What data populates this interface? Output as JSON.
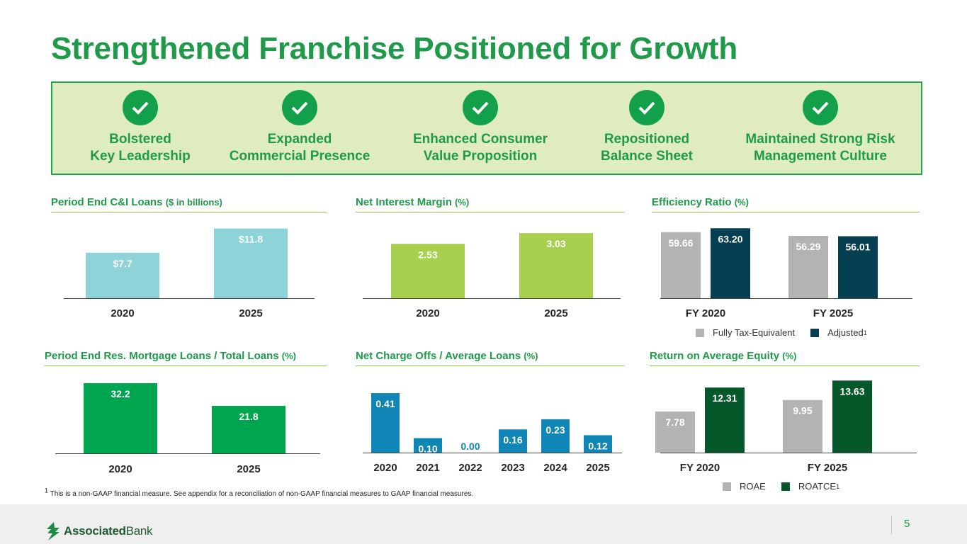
{
  "title": "Strengthened Franchise Positioned for Growth",
  "pillars": [
    {
      "line1": "Bolstered",
      "line2": "Key Leadership",
      "icon": "check-icon"
    },
    {
      "line1": "Expanded",
      "line2": "Commercial Presence",
      "icon": "check-icon"
    },
    {
      "line1": "Enhanced Consumer",
      "line2": "Value Proposition",
      "icon": "check-icon"
    },
    {
      "line1": "Repositioned",
      "line2": "Balance Sheet",
      "icon": "check-icon"
    },
    {
      "line1": "Maintained Strong Risk",
      "line2": "Management Culture",
      "icon": "check-icon"
    }
  ],
  "chart_data": [
    {
      "type": "bar",
      "title": "Period End C&I Loans",
      "unit": "($ in billions)",
      "categories": [
        "2020",
        "2025"
      ],
      "series": [
        {
          "name": "C&I Loans",
          "values": [
            7.7,
            11.8
          ],
          "labels": [
            "$7.7",
            "$11.8"
          ],
          "color": "#8dd3d8",
          "label_color": "#ffffff"
        }
      ],
      "ylim": [
        0,
        12
      ]
    },
    {
      "type": "bar",
      "title": "Net Interest Margin",
      "unit": "(%)",
      "categories": [
        "2020",
        "2025"
      ],
      "series": [
        {
          "name": "NIM",
          "values": [
            2.53,
            3.03
          ],
          "labels": [
            "2.53",
            "3.03"
          ],
          "color": "#a8cf4d",
          "label_color": "#ffffff"
        }
      ],
      "ylim": [
        0,
        3.1
      ]
    },
    {
      "type": "bar",
      "title": "Efficiency Ratio",
      "unit": "(%)",
      "categories": [
        "FY 2020",
        "FY 2025"
      ],
      "series": [
        {
          "name": "Fully Tax-Equivalent",
          "values": [
            59.66,
            56.29
          ],
          "labels": [
            "59.66",
            "56.29"
          ],
          "color": "#b3b3b3",
          "label_color": "#ffffff"
        },
        {
          "name": "Adjusted",
          "values": [
            63.2,
            56.01
          ],
          "labels": [
            "63.20",
            "56.01"
          ],
          "color": "#063f52",
          "label_color": "#ffffff"
        }
      ],
      "ylim": [
        0,
        64
      ],
      "legend": [
        "Fully Tax-Equivalent",
        "Adjusted"
      ],
      "legend_marker": "1"
    },
    {
      "type": "bar",
      "title": "Period End Res. Mortgage Loans / Total Loans",
      "unit": "(%)",
      "categories": [
        "2020",
        "2025"
      ],
      "series": [
        {
          "name": "Res. Mortgage / Total Loans",
          "values": [
            32.2,
            21.8
          ],
          "labels": [
            "32.2",
            "21.8"
          ],
          "color": "#00a64f",
          "label_color": "#ffffff"
        }
      ],
      "ylim": [
        0,
        32.5
      ]
    },
    {
      "type": "bar",
      "title": "Net Charge Offs / Average Loans",
      "unit": "(%)",
      "categories": [
        "2020",
        "2021",
        "2022",
        "2023",
        "2024",
        "2025"
      ],
      "series": [
        {
          "name": "NCO / Avg Loans",
          "values": [
            0.41,
            0.1,
            0.0,
            0.16,
            0.23,
            0.12
          ],
          "labels": [
            "0.41",
            "0.10",
            "0.00",
            "0.16",
            "0.23",
            "0.12"
          ],
          "color": "#0f86b6",
          "label_color": "#ffffff",
          "zero_label_color": "#0f86b6"
        }
      ],
      "ylim": [
        0,
        0.42
      ]
    },
    {
      "type": "bar",
      "title": "Return on Average Equity",
      "unit": "(%)",
      "categories": [
        "FY 2020",
        "FY 2025"
      ],
      "series": [
        {
          "name": "ROAE",
          "values": [
            7.78,
            9.95
          ],
          "labels": [
            "7.78",
            "9.95"
          ],
          "color": "#b3b3b3",
          "label_color": "#ffffff"
        },
        {
          "name": "ROATCE",
          "values": [
            12.31,
            13.63
          ],
          "labels": [
            "12.31",
            "13.63"
          ],
          "color": "#05582a",
          "label_color": "#ffffff"
        }
      ],
      "ylim": [
        0,
        13.8
      ],
      "legend": [
        "ROAE",
        "ROATCE"
      ],
      "legend_marker": "1"
    }
  ],
  "footnote": {
    "marker": "1",
    "text": "This is a non-GAAP financial measure. See appendix for a reconciliation of non-GAAP financial measures to GAAP financial measures."
  },
  "footer": {
    "logo_bold": "Associated",
    "logo_light": "Bank",
    "page_number": "5"
  }
}
